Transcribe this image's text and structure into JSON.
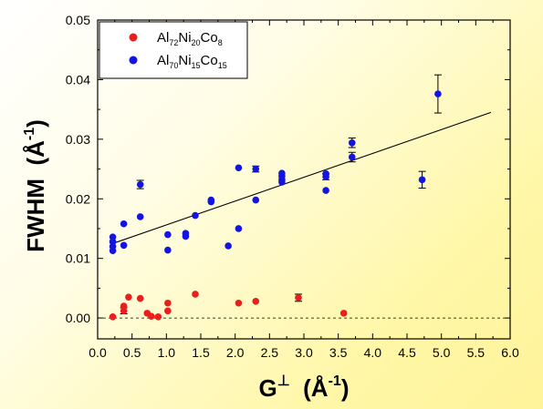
{
  "chart_data": {
    "type": "scatter",
    "xlabel": "G⊥ (Å⁻¹)",
    "ylabel": "FWHM (Å⁻¹)",
    "xlim": [
      0.0,
      6.0
    ],
    "ylim": [
      -0.0035,
      0.05
    ],
    "x_ticks": [
      "0.0",
      "0.5",
      "1.0",
      "1.5",
      "2.0",
      "2.5",
      "3.0",
      "3.5",
      "4.0",
      "4.5",
      "5.0",
      "5.5",
      "6.0"
    ],
    "y_ticks": [
      "0.00",
      "0.01",
      "0.02",
      "0.03",
      "0.04",
      "0.05"
    ],
    "legend_position": "top-left",
    "reference_line_y": 0,
    "series": [
      {
        "name": "Al72Ni20Co8",
        "color": "#e8201c",
        "points": [
          {
            "x": 0.22,
            "y": 0.0002,
            "err": 0
          },
          {
            "x": 0.38,
            "y": 0.0012,
            "err": 0.0005
          },
          {
            "x": 0.38,
            "y": 0.002,
            "err": 0
          },
          {
            "x": 0.45,
            "y": 0.0035,
            "err": 0
          },
          {
            "x": 0.62,
            "y": 0.0033,
            "err": 0
          },
          {
            "x": 0.72,
            "y": 0.0008,
            "err": 0
          },
          {
            "x": 0.78,
            "y": 0.0003,
            "err": 0
          },
          {
            "x": 0.88,
            "y": 0.0002,
            "err": 0
          },
          {
            "x": 1.02,
            "y": 0.0012,
            "err": 0
          },
          {
            "x": 1.02,
            "y": 0.0025,
            "err": 0
          },
          {
            "x": 1.42,
            "y": 0.004,
            "err": 0
          },
          {
            "x": 2.05,
            "y": 0.0025,
            "err": 0
          },
          {
            "x": 2.3,
            "y": 0.0028,
            "err": 0
          },
          {
            "x": 2.92,
            "y": 0.0034,
            "err": 0.0006
          },
          {
            "x": 3.58,
            "y": 0.0008,
            "err": 0
          }
        ]
      },
      {
        "name": "Al70Ni15Co15",
        "color": "#1414e0",
        "points": [
          {
            "x": 0.22,
            "y": 0.0113,
            "err": 0
          },
          {
            "x": 0.22,
            "y": 0.012,
            "err": 0
          },
          {
            "x": 0.22,
            "y": 0.0128,
            "err": 0
          },
          {
            "x": 0.22,
            "y": 0.0136,
            "err": 0
          },
          {
            "x": 0.38,
            "y": 0.0122,
            "err": 0
          },
          {
            "x": 0.38,
            "y": 0.0158,
            "err": 0
          },
          {
            "x": 0.62,
            "y": 0.017,
            "err": 0
          },
          {
            "x": 0.62,
            "y": 0.0224,
            "err": 0.0007
          },
          {
            "x": 1.02,
            "y": 0.0114,
            "err": 0
          },
          {
            "x": 1.02,
            "y": 0.014,
            "err": 0
          },
          {
            "x": 1.28,
            "y": 0.0137,
            "err": 0
          },
          {
            "x": 1.28,
            "y": 0.0142,
            "err": 0
          },
          {
            "x": 1.42,
            "y": 0.0172,
            "err": 0
          },
          {
            "x": 1.65,
            "y": 0.0195,
            "err": 0
          },
          {
            "x": 1.65,
            "y": 0.0198,
            "err": 0
          },
          {
            "x": 1.9,
            "y": 0.0121,
            "err": 0
          },
          {
            "x": 2.05,
            "y": 0.015,
            "err": 0
          },
          {
            "x": 2.05,
            "y": 0.0252,
            "err": 0
          },
          {
            "x": 2.3,
            "y": 0.0198,
            "err": 0
          },
          {
            "x": 2.3,
            "y": 0.025,
            "err": 0.0005
          },
          {
            "x": 2.68,
            "y": 0.0228,
            "err": 0
          },
          {
            "x": 2.68,
            "y": 0.0232,
            "err": 0
          },
          {
            "x": 2.68,
            "y": 0.0238,
            "err": 0
          },
          {
            "x": 2.68,
            "y": 0.0243,
            "err": 0
          },
          {
            "x": 3.32,
            "y": 0.0214,
            "err": 0
          },
          {
            "x": 3.32,
            "y": 0.0237,
            "err": 0.0005
          },
          {
            "x": 3.32,
            "y": 0.0242,
            "err": 0
          },
          {
            "x": 3.7,
            "y": 0.027,
            "err": 0.0008
          },
          {
            "x": 3.7,
            "y": 0.0294,
            "err": 0.0008
          },
          {
            "x": 4.72,
            "y": 0.0232,
            "err": 0.0014
          },
          {
            "x": 4.95,
            "y": 0.0376,
            "err": 0.0032
          }
        ]
      }
    ],
    "fit_line": {
      "x": [
        0.22,
        5.72
      ],
      "y": [
        0.0125,
        0.0345
      ]
    }
  }
}
